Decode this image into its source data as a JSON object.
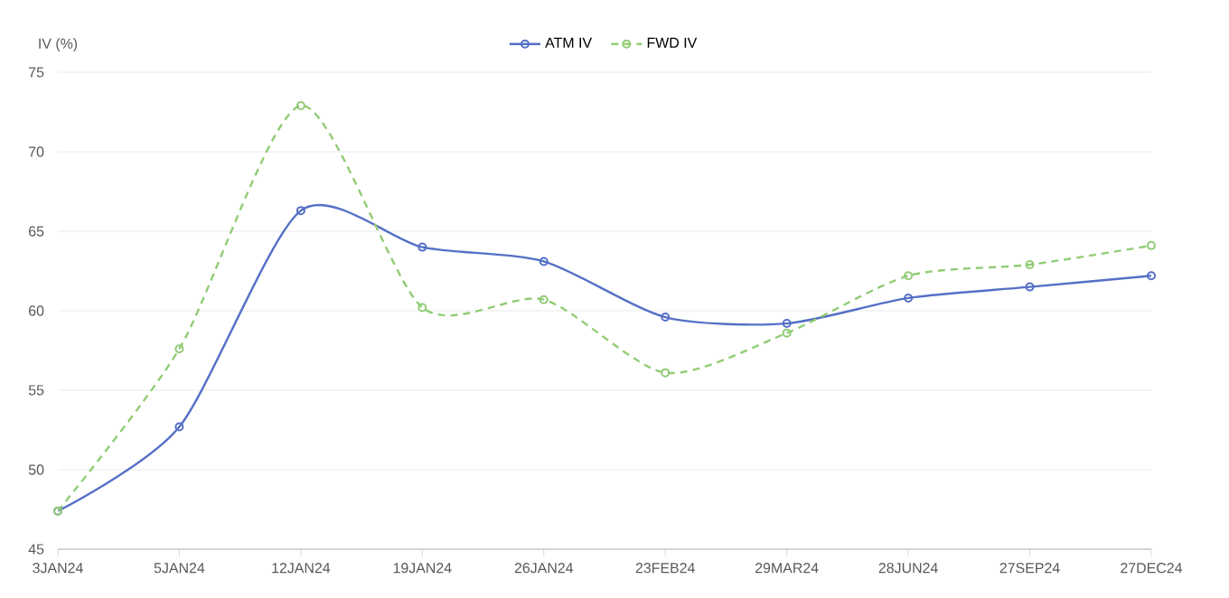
{
  "chart_data": {
    "type": "line",
    "ylabel": "IV (%)",
    "categories": [
      "3JAN24",
      "5JAN24",
      "12JAN24",
      "19JAN24",
      "26JAN24",
      "23FEB24",
      "29MAR24",
      "28JUN24",
      "27SEP24",
      "27DEC24"
    ],
    "series": [
      {
        "name": "ATM IV",
        "color": "#5470c6",
        "line_style": "solid",
        "values": [
          47.4,
          52.7,
          66.3,
          64.0,
          63.1,
          59.6,
          59.2,
          60.8,
          61.5,
          62.2
        ]
      },
      {
        "name": "FWD IV",
        "color": "#91cc75",
        "line_style": "dashed",
        "values": [
          47.4,
          57.6,
          72.9,
          60.2,
          60.7,
          56.1,
          58.6,
          62.2,
          62.9,
          64.1
        ]
      }
    ],
    "ylim": [
      45,
      75
    ],
    "yticks": [
      45,
      50,
      55,
      60,
      65,
      70,
      75
    ],
    "grid": "y",
    "legend": "top",
    "marker": "circle"
  }
}
